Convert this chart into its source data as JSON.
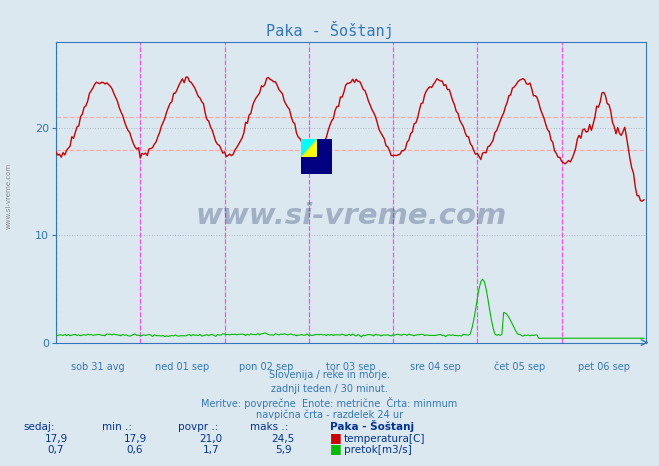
{
  "title": "Paka - Šoštanj",
  "background_color": "#dce8f0",
  "plot_bg_color": "#dce8f0",
  "x_labels": [
    "sob 31 avg",
    "ned 01 sep",
    "pon 02 sep",
    "tor 03 sep",
    "sre 04 sep",
    "čet 05 sep",
    "pet 06 sep"
  ],
  "y_ticks": [
    0,
    10,
    20
  ],
  "y_min": 0,
  "y_max": 28,
  "avg_line_temp": 21.0,
  "min_line_temp": 17.9,
  "subtitle_lines": [
    "Slovenija / reke in morje.",
    "zadnji teden / 30 minut.",
    "Meritve: povprečne  Enote: metrične  Črta: minmum",
    "navpična črta - razdelek 24 ur"
  ],
  "temp_color": "#cc0000",
  "flow_color": "#00bb00",
  "vline_color": "#ff44ff",
  "hline_color": "#ffaaaa",
  "grid_color": "#aabbc8",
  "axis_color": "#3377bb",
  "text_color": "#003399",
  "watermark_color": "#1a3060",
  "n_days": 7,
  "n_points": 336
}
